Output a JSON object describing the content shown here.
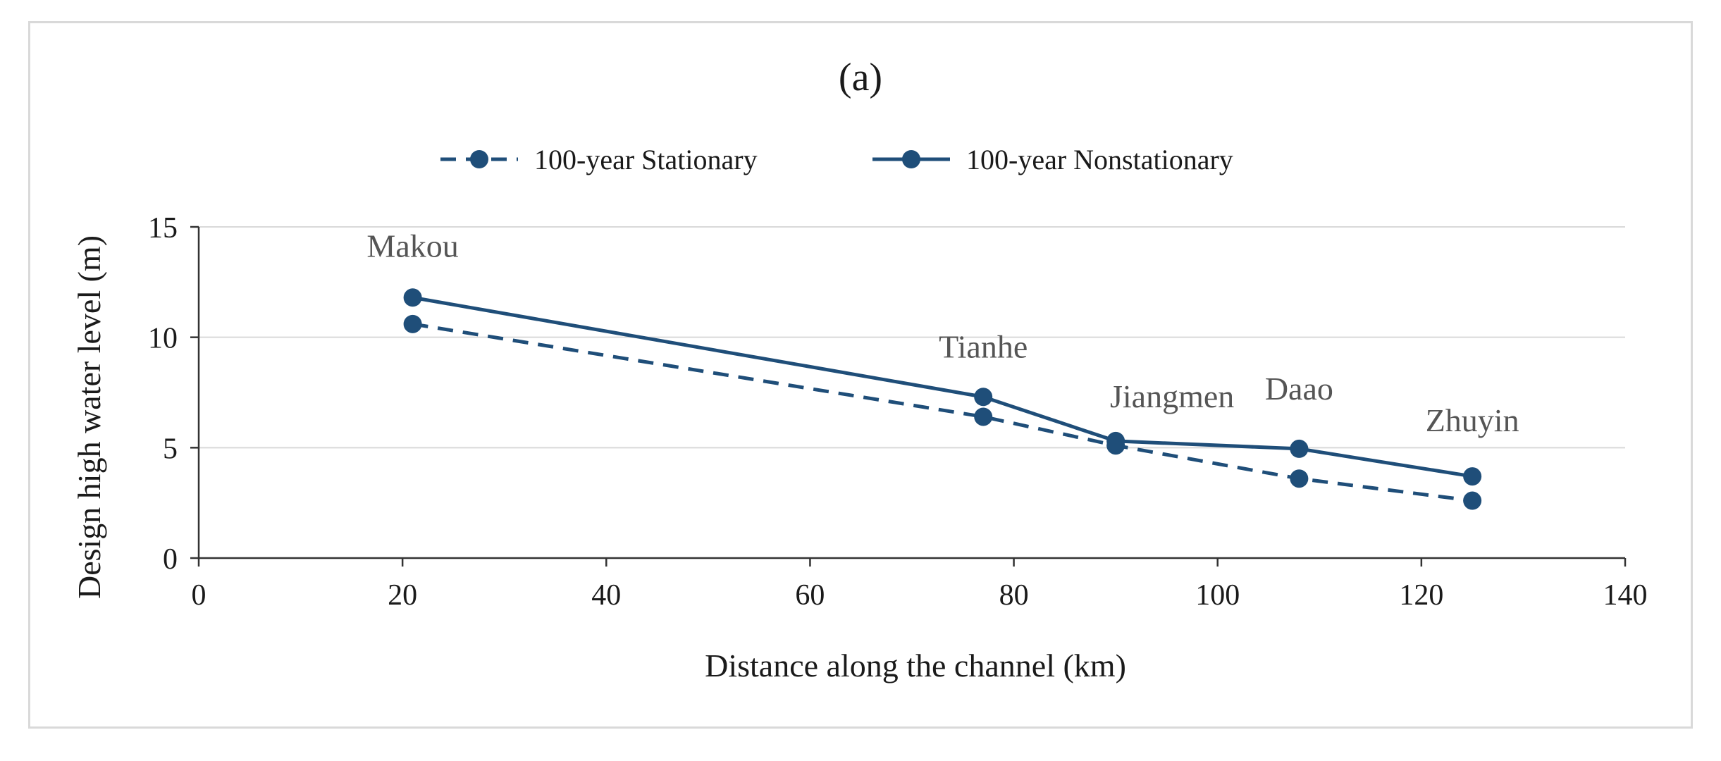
{
  "chart_data": {
    "type": "line",
    "title": "(a)",
    "xlabel": "Distance along the channel (km)",
    "ylabel": "Design high water level (m)",
    "xlim": [
      0,
      140
    ],
    "ylim": [
      0,
      15
    ],
    "xticks": [
      0,
      20,
      40,
      60,
      80,
      100,
      120,
      140
    ],
    "yticks": [
      0,
      5,
      10,
      15
    ],
    "grid": "horizontal",
    "legend_position": "top",
    "x": [
      21,
      77,
      90,
      108,
      125
    ],
    "series": [
      {
        "name": "100-year Stationary",
        "style": "dashed",
        "color": "#1f4e79",
        "values": [
          10.6,
          6.4,
          5.1,
          3.6,
          2.6
        ]
      },
      {
        "name": "100-year Nonstationary",
        "style": "solid",
        "color": "#1f4e79",
        "values": [
          11.8,
          7.3,
          5.3,
          4.95,
          3.7
        ]
      }
    ],
    "annotations": [
      "Makou",
      "Tianhe",
      "Jiangmen",
      "Daao",
      "Zhuyin"
    ]
  }
}
